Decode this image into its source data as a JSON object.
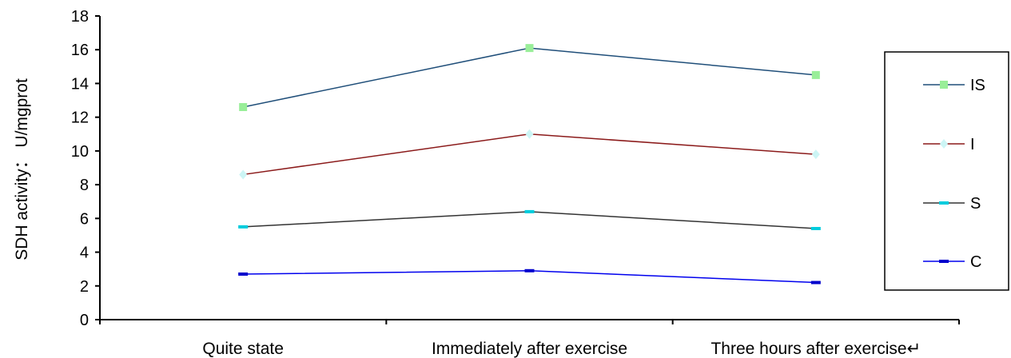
{
  "chart_data": {
    "type": "line",
    "categories": [
      "Quite state",
      "Immediately after exercise",
      "Three hours after exercise↵"
    ],
    "series": [
      {
        "name": "IS",
        "values": [
          12.6,
          16.1,
          14.5
        ],
        "line_color": "#1f4e79",
        "marker_color": "#99ee99",
        "marker": "square"
      },
      {
        "name": "I",
        "values": [
          8.6,
          11.0,
          9.8
        ],
        "line_color": "#8b1a1a",
        "marker_color": "#ccf5f5",
        "marker": "diamond"
      },
      {
        "name": "S",
        "values": [
          5.5,
          6.4,
          5.4
        ],
        "line_color": "#333333",
        "marker_color": "#00ccdd",
        "marker": "dash"
      },
      {
        "name": "C",
        "values": [
          2.7,
          2.9,
          2.2
        ],
        "line_color": "#0000ee",
        "marker_color": "#0000cc",
        "marker": "dash"
      }
    ],
    "ylabel": "SDH activity： U/mgprot",
    "ylim": [
      0,
      18
    ],
    "yticks": [
      "0",
      "2",
      "4",
      "6",
      "8",
      "10",
      "12",
      "14",
      "16",
      "18"
    ],
    "grid": false,
    "legend_position": "right"
  }
}
